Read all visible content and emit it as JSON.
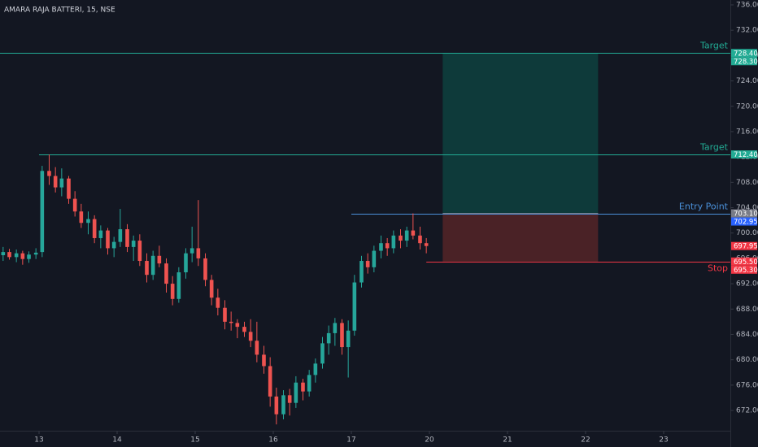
{
  "chart_data": {
    "type": "candlestick",
    "title": "AMARA RAJA BATTERI, 15, NSE",
    "xlim": [
      -0.5,
      8.854
    ],
    "ylim": [
      668.8,
      736.77
    ],
    "xticks": [
      {
        "value": 0,
        "label": "13"
      },
      {
        "value": 1,
        "label": "14"
      },
      {
        "value": 2,
        "label": "15"
      },
      {
        "value": 3,
        "label": "16"
      },
      {
        "value": 4,
        "label": "17"
      },
      {
        "value": 5,
        "label": "20"
      },
      {
        "value": 6,
        "label": "21"
      },
      {
        "value": 7,
        "label": "22"
      },
      {
        "value": 8,
        "label": "23"
      }
    ],
    "yticks": [
      {
        "value": 672,
        "label": "672.00"
      },
      {
        "value": 676,
        "label": "676.00"
      },
      {
        "value": 680,
        "label": "680.00"
      },
      {
        "value": 684,
        "label": "684.00"
      },
      {
        "value": 688,
        "label": "688.00"
      },
      {
        "value": 692,
        "label": "692.00"
      },
      {
        "value": 696,
        "label": "696.00"
      },
      {
        "value": 700,
        "label": "700.00"
      },
      {
        "value": 704,
        "label": "704.00"
      },
      {
        "value": 708,
        "label": "708.00"
      },
      {
        "value": 712,
        "label": "712.00"
      },
      {
        "value": 716,
        "label": "716.00"
      },
      {
        "value": 720,
        "label": "720.00"
      },
      {
        "value": 724,
        "label": "724.00"
      },
      {
        "value": 728,
        "label": "728.00"
      },
      {
        "value": 732,
        "label": "732.00"
      },
      {
        "value": 736,
        "label": "736.00"
      }
    ],
    "up_color": "#26a69a",
    "down_color": "#ef5350",
    "candles": {
      "x": [
        -0.46,
        -0.38,
        -0.29,
        -0.21,
        -0.13,
        -0.04,
        0.04,
        0.13,
        0.21,
        0.29,
        0.38,
        0.46,
        0.54,
        0.63,
        0.71,
        0.79,
        0.88,
        0.96,
        1.04,
        1.13,
        1.21,
        1.29,
        1.38,
        1.46,
        1.54,
        1.63,
        1.71,
        1.79,
        1.88,
        1.96,
        2.04,
        2.13,
        2.21,
        2.29,
        2.38,
        2.46,
        2.54,
        2.63,
        2.71,
        2.79,
        2.88,
        2.96,
        3.04,
        3.13,
        3.21,
        3.29,
        3.38,
        3.46,
        3.54,
        3.63,
        3.71,
        3.79,
        3.88,
        3.96,
        4.04,
        4.13,
        4.21,
        4.29,
        4.38,
        4.46,
        4.54,
        4.63,
        4.71,
        4.79,
        4.88,
        4.96
      ],
      "open": [
        696.5,
        697.0,
        696.2,
        696.8,
        695.9,
        696.6,
        697.0,
        709.8,
        709.0,
        707.2,
        708.6,
        705.4,
        703.4,
        701.6,
        702.2,
        699.2,
        700.4,
        697.6,
        698.6,
        700.6,
        697.8,
        698.8,
        695.6,
        693.4,
        696.4,
        695.2,
        692.0,
        689.6,
        693.8,
        696.8,
        697.6,
        696.0,
        692.6,
        689.8,
        688.2,
        686.0,
        685.8,
        685.2,
        684.4,
        683.0,
        680.8,
        679.0,
        674.2,
        671.4,
        674.4,
        673.2,
        676.4,
        675.0,
        677.6,
        679.4,
        682.6,
        684.2,
        685.8,
        682.0,
        684.6,
        692.2,
        695.6,
        694.6,
        697.2,
        698.4,
        697.6,
        699.6,
        698.8,
        700.4,
        699.6,
        698.4
      ],
      "high": [
        697.8,
        697.5,
        697.4,
        697.2,
        697.1,
        697.6,
        710.6,
        712.4,
        710.4,
        710.2,
        709.0,
        706.6,
        704.6,
        703.4,
        702.8,
        701.2,
        700.8,
        699.4,
        703.8,
        701.4,
        699.6,
        699.8,
        696.8,
        697.2,
        698.0,
        696.0,
        693.2,
        694.6,
        697.6,
        701.0,
        705.2,
        696.8,
        693.4,
        691.2,
        689.4,
        687.6,
        686.4,
        686.0,
        686.4,
        686.0,
        682.2,
        680.4,
        675.6,
        675.2,
        675.4,
        677.4,
        677.0,
        678.4,
        680.2,
        683.6,
        685.4,
        686.6,
        686.4,
        686.2,
        693.4,
        696.4,
        696.8,
        698.0,
        699.6,
        699.2,
        700.4,
        700.6,
        701.0,
        703.1,
        701.0,
        699.2
      ],
      "low": [
        695.6,
        695.8,
        695.4,
        695.0,
        695.3,
        695.9,
        696.2,
        707.6,
        706.4,
        705.8,
        704.6,
        702.6,
        700.8,
        699.8,
        698.4,
        697.6,
        696.6,
        696.2,
        697.8,
        697.0,
        695.6,
        694.8,
        692.2,
        692.6,
        694.6,
        690.6,
        688.6,
        689.0,
        692.8,
        695.4,
        694.8,
        691.6,
        688.6,
        687.0,
        684.8,
        684.6,
        683.4,
        683.6,
        682.0,
        679.6,
        677.8,
        672.6,
        669.8,
        670.6,
        671.2,
        672.4,
        673.6,
        674.2,
        676.4,
        678.6,
        680.8,
        682.2,
        680.8,
        677.2,
        683.8,
        691.4,
        693.6,
        693.8,
        696.0,
        696.4,
        696.8,
        697.6,
        697.8,
        699.0,
        697.4,
        696.8
      ],
      "close": [
        697.0,
        696.2,
        696.8,
        695.9,
        696.6,
        696.9,
        709.8,
        709.0,
        707.2,
        708.6,
        705.4,
        703.4,
        701.6,
        702.2,
        699.2,
        700.4,
        697.6,
        698.6,
        700.6,
        697.8,
        698.8,
        695.6,
        693.4,
        696.4,
        695.2,
        692.0,
        689.6,
        693.8,
        696.8,
        697.6,
        696.0,
        692.6,
        689.8,
        688.2,
        686.0,
        685.8,
        685.2,
        684.4,
        683.0,
        680.8,
        679.0,
        674.2,
        671.4,
        674.4,
        673.2,
        676.4,
        675.0,
        677.6,
        679.4,
        682.6,
        684.2,
        685.8,
        682.0,
        684.6,
        692.2,
        695.6,
        694.6,
        697.2,
        698.4,
        697.6,
        699.6,
        698.8,
        700.4,
        699.6,
        698.4,
        697.95
      ]
    },
    "position": {
      "x_start": 5.17,
      "x_end": 7.16,
      "entry": 703.1,
      "target": 728.4,
      "stop": 695.5,
      "profit_color": "#0e3a3a",
      "loss_color": "#4a2226"
    },
    "annotations": [
      {
        "text": "Target",
        "value": 728.4,
        "x_start": -0.5,
        "color": "#22ab94"
      },
      {
        "text": "Target",
        "value": 712.4,
        "x_start": 0.0,
        "color": "#22ab94"
      },
      {
        "text": "Entry Point",
        "value": 703.1,
        "x_start": 4.0,
        "color": "#4a90d9"
      },
      {
        "text": "Stop",
        "value": 695.5,
        "x_start": 4.96,
        "color": "#f23645"
      }
    ],
    "price_labels": [
      {
        "value": 728.4,
        "label": "728.40",
        "color": "#22ab94"
      },
      {
        "value": 728.3,
        "label": "728.30",
        "color": "#22ab94"
      },
      {
        "value": 712.4,
        "label": "712.40",
        "color": "#22ab94"
      },
      {
        "value": 703.1,
        "label": "703.10",
        "color": "#787b86"
      },
      {
        "value": 702.95,
        "label": "702.95",
        "color": "#2962ff"
      },
      {
        "value": 697.95,
        "label": "697.95",
        "color": "#f23645"
      },
      {
        "value": 695.5,
        "label": "695.50",
        "color": "#f23645"
      },
      {
        "value": 695.3,
        "label": "695.30",
        "color": "#f23645"
      }
    ]
  }
}
